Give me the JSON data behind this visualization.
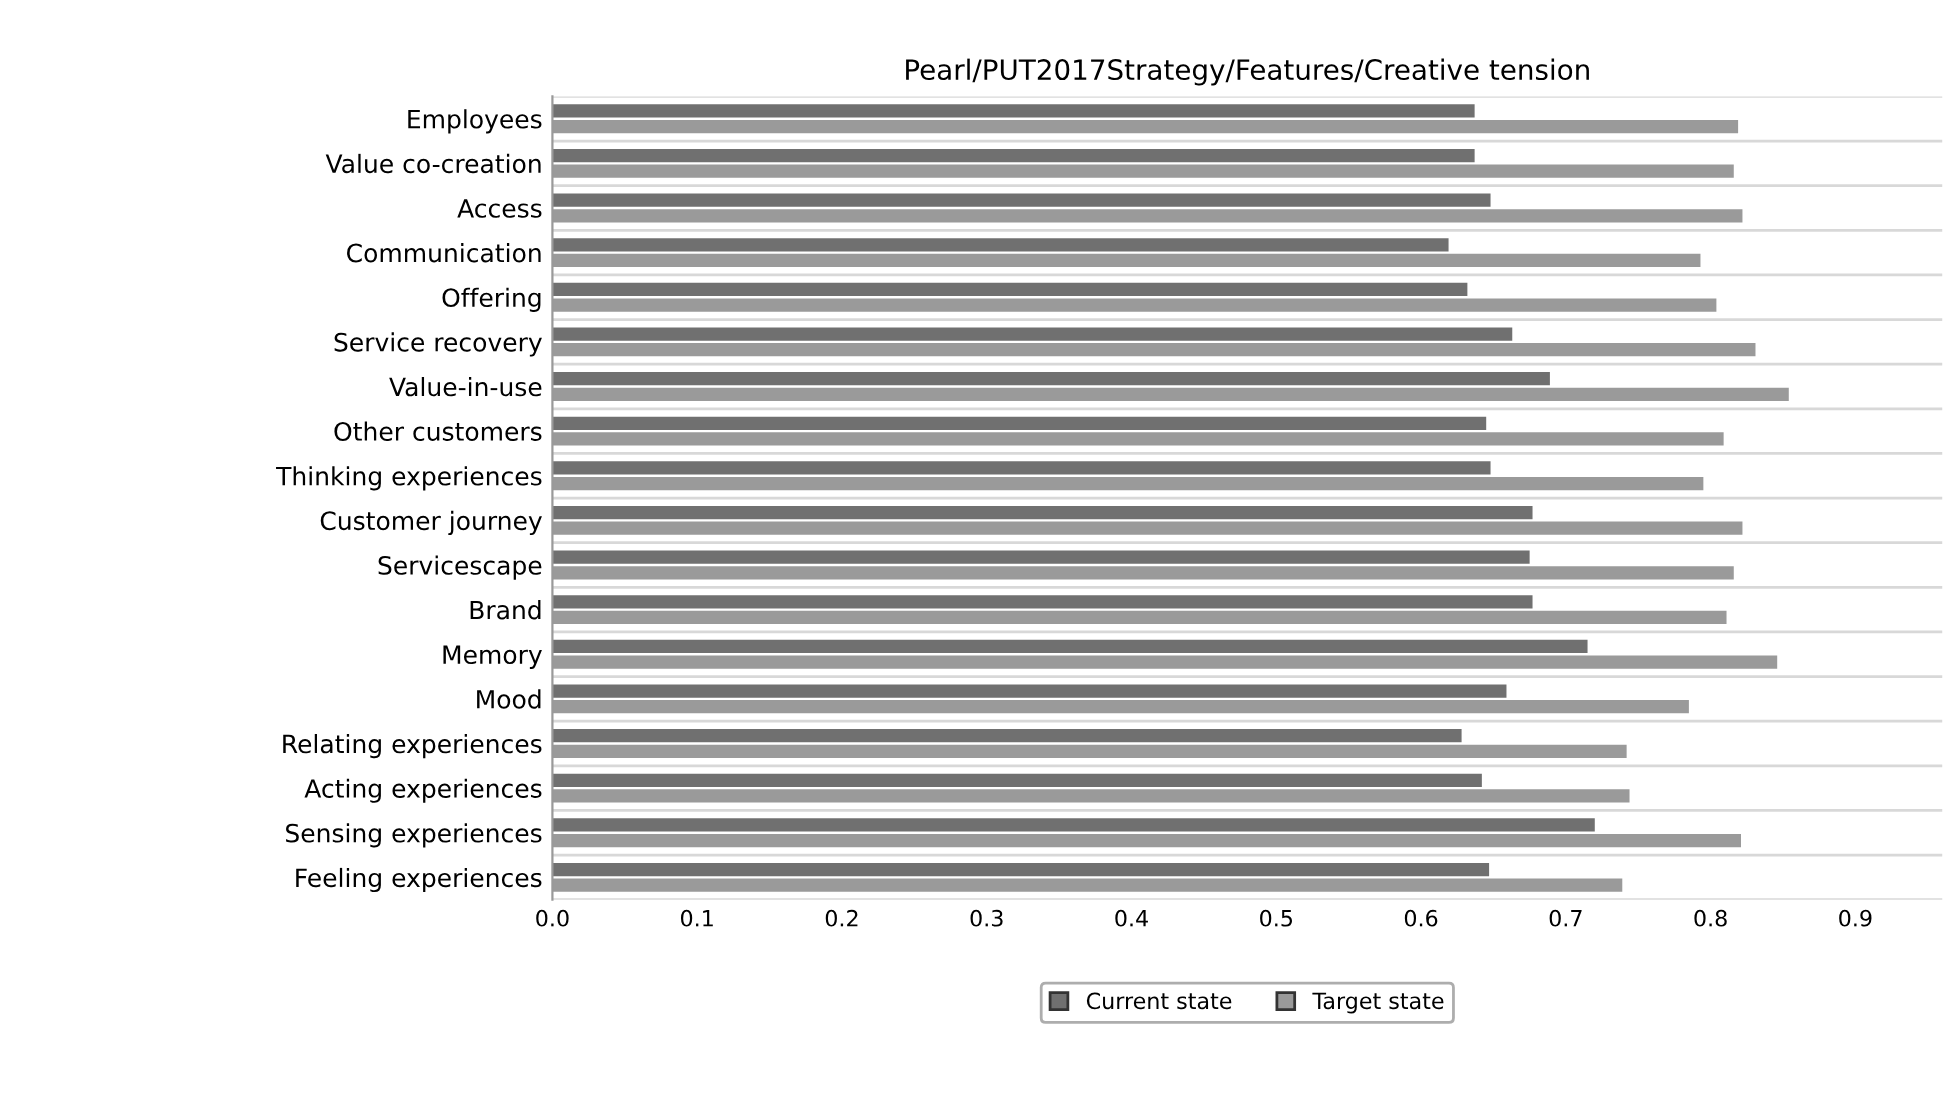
{
  "chart_data": {
    "type": "bar",
    "orientation": "horizontal",
    "title": "Pearl/PUT2017Strategy/Features/Creative tension",
    "categories": [
      "Employees",
      "Value co-creation",
      "Access",
      "Communication",
      "Offering",
      "Service recovery",
      "Value-in-use",
      "Other customers",
      "Thinking experiences",
      "Customer journey",
      "Servicescape",
      "Brand",
      "Memory",
      "Mood",
      "Relating experiences",
      "Acting experiences",
      "Sensing experiences",
      "Feeling experiences"
    ],
    "series": [
      {
        "name": "Current state",
        "color": "#707070",
        "values": [
          0.637,
          0.637,
          0.648,
          0.619,
          0.632,
          0.663,
          0.689,
          0.645,
          0.648,
          0.677,
          0.675,
          0.677,
          0.715,
          0.659,
          0.628,
          0.642,
          0.72,
          0.647
        ]
      },
      {
        "name": "Target state",
        "color": "#9a9a9a",
        "values": [
          0.819,
          0.816,
          0.822,
          0.793,
          0.804,
          0.831,
          0.854,
          0.809,
          0.795,
          0.822,
          0.816,
          0.811,
          0.846,
          0.785,
          0.742,
          0.744,
          0.821,
          0.739
        ]
      }
    ],
    "xlim": [
      0,
      0.96
    ],
    "xticks": [
      {
        "value": 0,
        "label": "0.0"
      },
      0.1,
      0.2,
      0.3,
      0.4,
      0.5,
      0.6,
      0.7,
      0.8,
      0.9
    ],
    "grid": "y",
    "legend": "bottom"
  }
}
